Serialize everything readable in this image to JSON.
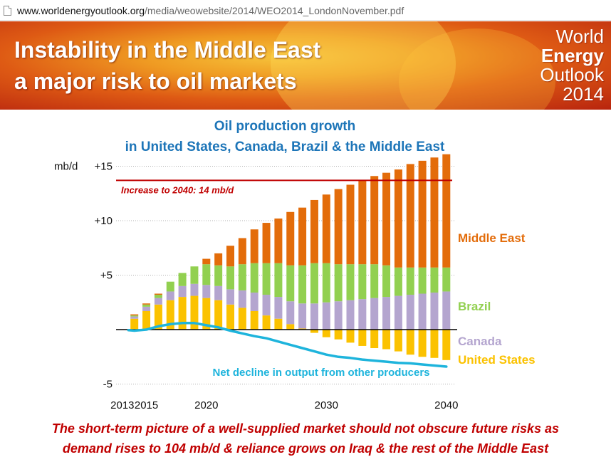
{
  "browser": {
    "url_host": "www.worldenergyoutlook.org",
    "url_path": "/media/weowebsite/2014/WEO2014_LondonNovember.pdf"
  },
  "banner": {
    "title_line1": "Instability in the Middle East",
    "title_line2": "a major risk to oil markets",
    "logo_line1": "World",
    "logo_line2": "Energy",
    "logo_line3": "Outlook",
    "logo_line4": "2014"
  },
  "chart_data": {
    "type": "bar",
    "title_line1": "Oil production growth",
    "title_line2": "in United States, Canada, Brazil & the Middle East",
    "ylabel": "mb/d",
    "ylim": [
      -5,
      15
    ],
    "yticks": [
      {
        "value": 15,
        "label": "+15"
      },
      {
        "value": 10,
        "label": "+10"
      },
      {
        "value": 5,
        "label": "+5"
      },
      {
        "value": -5,
        "label": "-5"
      }
    ],
    "xticks": [
      {
        "year": 2013,
        "label": "2013"
      },
      {
        "year": 2015,
        "label": "2015"
      },
      {
        "year": 2020,
        "label": "2020"
      },
      {
        "year": 2030,
        "label": "2030"
      },
      {
        "year": 2040,
        "label": "2040"
      }
    ],
    "categories": [
      2014,
      2015,
      2016,
      2017,
      2018,
      2019,
      2020,
      2021,
      2022,
      2023,
      2024,
      2025,
      2026,
      2027,
      2028,
      2029,
      2030,
      2031,
      2032,
      2033,
      2034,
      2035,
      2036,
      2037,
      2038,
      2039,
      2040
    ],
    "series": [
      {
        "name": "United States",
        "color": "#fbc200",
        "values": [
          1.0,
          1.7,
          2.3,
          2.7,
          3.0,
          3.1,
          2.9,
          2.7,
          2.3,
          2.0,
          1.7,
          1.3,
          1.0,
          0.5,
          0.1,
          -0.3,
          -0.7,
          -0.9,
          -1.2,
          -1.5,
          -1.7,
          -1.8,
          -2.0,
          -2.3,
          -2.5,
          -2.6,
          -2.8
        ]
      },
      {
        "name": "Canada",
        "color": "#b4a5cf",
        "values": [
          0.2,
          0.4,
          0.6,
          0.8,
          1.0,
          1.1,
          1.2,
          1.3,
          1.4,
          1.6,
          1.7,
          1.9,
          2.0,
          2.1,
          2.3,
          2.4,
          2.5,
          2.6,
          2.7,
          2.8,
          2.9,
          3.0,
          3.1,
          3.2,
          3.3,
          3.4,
          3.5
        ]
      },
      {
        "name": "Brazil",
        "color": "#92d050",
        "values": [
          0.1,
          0.2,
          0.3,
          0.9,
          1.2,
          1.6,
          1.9,
          1.9,
          2.1,
          2.4,
          2.7,
          2.9,
          3.1,
          3.3,
          3.5,
          3.7,
          3.6,
          3.4,
          3.3,
          3.2,
          3.1,
          2.9,
          2.6,
          2.5,
          2.4,
          2.3,
          2.2
        ]
      },
      {
        "name": "Middle East",
        "color": "#e36c0a",
        "values": [
          0.1,
          0.1,
          0.1,
          0.0,
          0.0,
          0.0,
          0.5,
          1.1,
          1.9,
          2.4,
          3.1,
          3.7,
          4.1,
          4.9,
          5.3,
          5.8,
          6.3,
          6.9,
          7.3,
          7.7,
          8.1,
          8.5,
          9.0,
          9.5,
          9.8,
          10.1,
          10.4
        ]
      }
    ],
    "net_decline": {
      "name": "Net decline in output from other producers",
      "color": "#1eb4dc",
      "years": [
        2013.5,
        2014,
        2015,
        2016,
        2017,
        2018,
        2019,
        2020,
        2021,
        2022,
        2023,
        2024,
        2025,
        2026,
        2027,
        2028,
        2029,
        2030,
        2031,
        2032,
        2033,
        2034,
        2035,
        2036,
        2037,
        2038,
        2039,
        2040
      ],
      "values": [
        -0.05,
        -0.1,
        0.0,
        0.3,
        0.5,
        0.6,
        0.6,
        0.4,
        0.2,
        -0.1,
        -0.35,
        -0.6,
        -0.8,
        -1.1,
        -1.4,
        -1.7,
        -2.0,
        -2.3,
        -2.5,
        -2.6,
        -2.75,
        -2.85,
        -2.95,
        -3.05,
        -3.1,
        -3.2,
        -3.3,
        -3.4
      ]
    },
    "reference_line": {
      "value": 13.7,
      "label": "Increase to 2040: 14 mb/d",
      "color": "#c00000"
    },
    "legend": [
      {
        "label": "Middle East",
        "color": "#e36c0a"
      },
      {
        "label": "Brazil",
        "color": "#92d050"
      },
      {
        "label": "Canada",
        "color": "#b4a5cf"
      },
      {
        "label": "United States",
        "color": "#fbc200"
      }
    ],
    "grid": true,
    "legend_placement": "right"
  },
  "caption": {
    "line1": "The short-term picture of a well-supplied market should not obscure future risks as",
    "line2": "demand rises to 104 mb/d & reliance grows on Iraq & the rest of the Middle East"
  }
}
